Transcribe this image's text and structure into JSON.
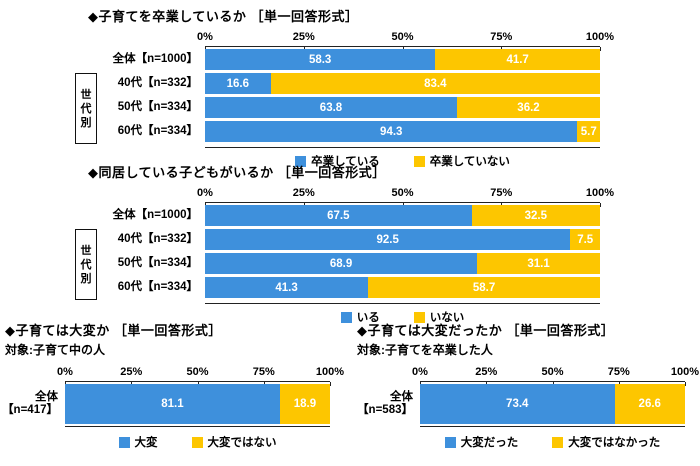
{
  "palette": {
    "blue": "#3E90DC",
    "yellow": "#FDC600",
    "axis": "#222222",
    "text": "#000000"
  },
  "chart_data": [
    {
      "type": "bar",
      "stacked": true,
      "orientation": "horizontal",
      "title": "◆子育てを卒業しているか ［単一回答形式］",
      "xlabel": "",
      "ylabel": "",
      "xlim": [
        0,
        100
      ],
      "x_ticks": [
        "0%",
        "25%",
        "50%",
        "75%",
        "100%"
      ],
      "grid": false,
      "legend_position": "bottom",
      "group_label": "世代別",
      "series": [
        {
          "name": "卒業している",
          "color": "blue"
        },
        {
          "name": "卒業していない",
          "color": "yellow"
        }
      ],
      "rows": [
        {
          "label": "全体【n=1000】",
          "in_group": false,
          "values": [
            58.3,
            41.7
          ]
        },
        {
          "label": "40代【n=332】",
          "in_group": true,
          "values": [
            16.6,
            83.4
          ]
        },
        {
          "label": "50代【n=334】",
          "in_group": true,
          "values": [
            63.8,
            36.2
          ]
        },
        {
          "label": "60代【n=334】",
          "in_group": true,
          "values": [
            94.3,
            5.7
          ]
        }
      ],
      "legend": [
        "卒業している",
        "卒業していない"
      ]
    },
    {
      "type": "bar",
      "stacked": true,
      "orientation": "horizontal",
      "title": "◆同居している子どもがいるか ［単一回答形式］",
      "xlabel": "",
      "ylabel": "",
      "xlim": [
        0,
        100
      ],
      "x_ticks": [
        "0%",
        "25%",
        "50%",
        "75%",
        "100%"
      ],
      "grid": false,
      "legend_position": "bottom",
      "group_label": "世代別",
      "series": [
        {
          "name": "いる",
          "color": "blue"
        },
        {
          "name": "いない",
          "color": "yellow"
        }
      ],
      "rows": [
        {
          "label": "全体【n=1000】",
          "in_group": false,
          "values": [
            67.5,
            32.5
          ]
        },
        {
          "label": "40代【n=332】",
          "in_group": true,
          "values": [
            92.5,
            7.5
          ]
        },
        {
          "label": "50代【n=334】",
          "in_group": true,
          "values": [
            68.9,
            31.1
          ]
        },
        {
          "label": "60代【n=334】",
          "in_group": true,
          "values": [
            41.3,
            58.7
          ]
        }
      ],
      "legend": [
        "いる",
        "いない"
      ]
    },
    {
      "type": "bar",
      "stacked": true,
      "orientation": "horizontal",
      "title": "◆子育ては大変か ［単一回答形式］",
      "subtitle": "対象:子育て中の人",
      "xlabel": "",
      "ylabel": "",
      "xlim": [
        0,
        100
      ],
      "x_ticks": [
        "0%",
        "25%",
        "50%",
        "75%",
        "100%"
      ],
      "grid": false,
      "legend_position": "bottom",
      "series": [
        {
          "name": "大変",
          "color": "blue"
        },
        {
          "name": "大変ではない",
          "color": "yellow"
        }
      ],
      "rows": [
        {
          "label": "全体【n=417】",
          "label_lines": [
            "全体",
            "【n=417】"
          ],
          "in_group": false,
          "values": [
            81.1,
            18.9
          ]
        }
      ],
      "legend": [
        "大変",
        "大変ではない"
      ]
    },
    {
      "type": "bar",
      "stacked": true,
      "orientation": "horizontal",
      "title": "◆子育ては大変だったか ［単一回答形式］",
      "subtitle": "対象:子育てを卒業した人",
      "xlabel": "",
      "ylabel": "",
      "xlim": [
        0,
        100
      ],
      "x_ticks": [
        "0%",
        "25%",
        "50%",
        "75%",
        "100%"
      ],
      "grid": false,
      "legend_position": "bottom",
      "series": [
        {
          "name": "大変だった",
          "color": "blue"
        },
        {
          "name": "大変ではなかった",
          "color": "yellow"
        }
      ],
      "rows": [
        {
          "label": "全体【n=583】",
          "label_lines": [
            "全体",
            "【n=583】"
          ],
          "in_group": false,
          "values": [
            73.4,
            26.6
          ]
        }
      ],
      "legend": [
        "大変だった",
        "大変ではなかった"
      ]
    }
  ]
}
